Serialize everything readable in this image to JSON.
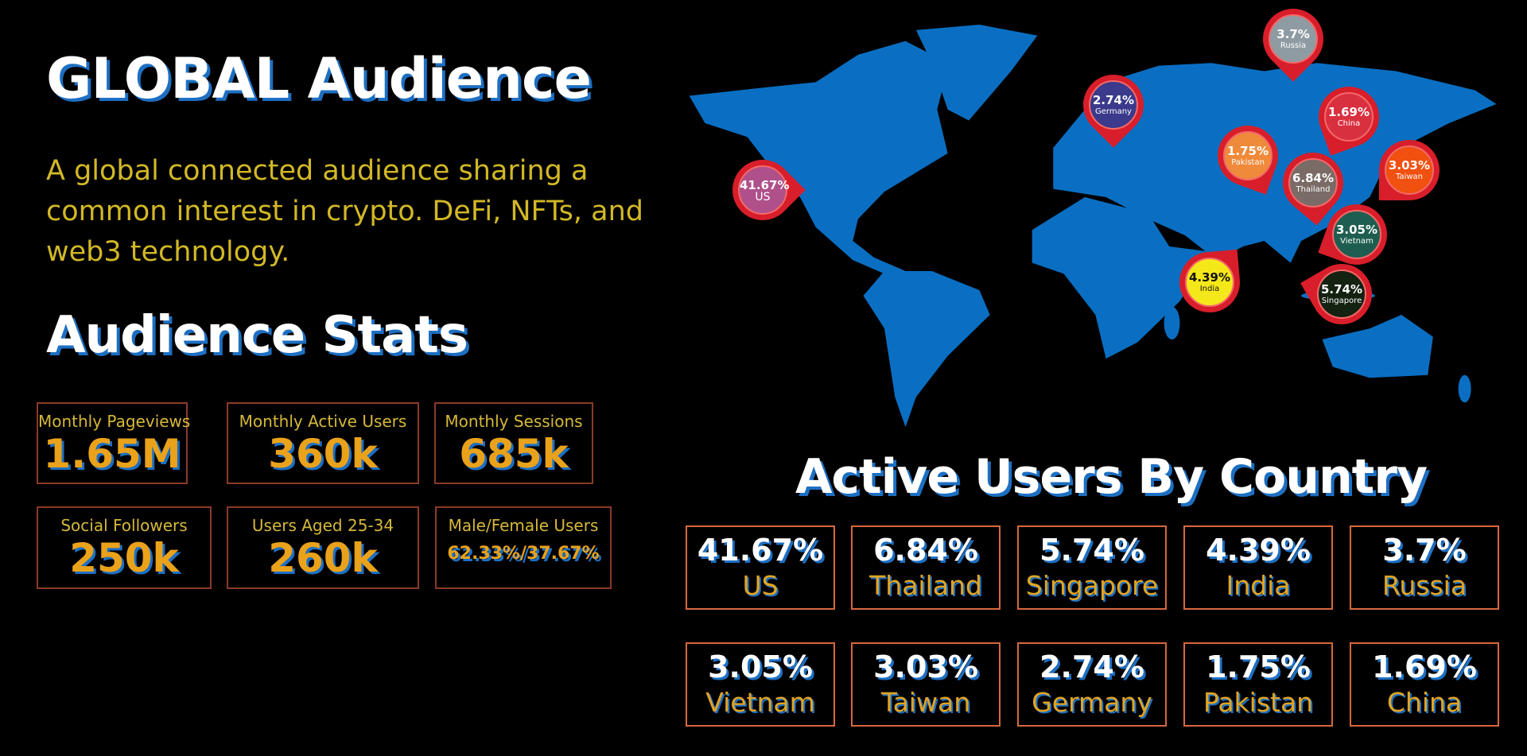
{
  "header": {
    "title": "GLOBAL Audience",
    "intro": "A global connected audience sharing a common interest in crypto. DeFi, NFTs, and web3 technology."
  },
  "stats": {
    "title": "Audience Stats",
    "items": [
      {
        "label": "Monthly Pageviews",
        "value": "1.65M"
      },
      {
        "label": "Monthly Active Users",
        "value": "360k"
      },
      {
        "label": "Monthly Sessions",
        "value": "685k"
      },
      {
        "label": "Social Followers",
        "value": "250k"
      },
      {
        "label": "Users Aged 25-34",
        "value": "260k"
      },
      {
        "label": "Male/Female Users",
        "value": "62.33%/37.67%"
      }
    ]
  },
  "countries": {
    "title": "Active Users By Country",
    "items": [
      {
        "pct": "41.67%",
        "name": "US"
      },
      {
        "pct": "6.84%",
        "name": "Thailand"
      },
      {
        "pct": "5.74%",
        "name": "Singapore"
      },
      {
        "pct": "4.39%",
        "name": "India"
      },
      {
        "pct": "3.7%",
        "name": "Russia"
      },
      {
        "pct": "3.05%",
        "name": "Vietnam"
      },
      {
        "pct": "3.03%",
        "name": "Taiwan"
      },
      {
        "pct": "2.74%",
        "name": "Germany"
      },
      {
        "pct": "1.75%",
        "name": "Pakistan"
      },
      {
        "pct": "1.69%",
        "name": "China"
      }
    ]
  },
  "map": {
    "land_color": "#0a6fc2",
    "pins": [
      {
        "pct": "41.67%",
        "name": "US",
        "color": "#b0508a"
      },
      {
        "pct": "2.74%",
        "name": "Germany",
        "color": "#3b3a8c"
      },
      {
        "pct": "3.7%",
        "name": "Russia",
        "color": "#8e9ba3"
      },
      {
        "pct": "1.69%",
        "name": "China",
        "color": "#d93040"
      },
      {
        "pct": "1.75%",
        "name": "Pakistan",
        "color": "#ef8a3a"
      },
      {
        "pct": "6.84%",
        "name": "Thailand",
        "color": "#7a6b66"
      },
      {
        "pct": "3.03%",
        "name": "Taiwan",
        "color": "#f05010"
      },
      {
        "pct": "3.05%",
        "name": "Vietnam",
        "color": "#1e5e50"
      },
      {
        "pct": "4.39%",
        "name": "India",
        "color": "#f5e81a"
      },
      {
        "pct": "5.74%",
        "name": "Singapore",
        "color": "#142212"
      }
    ]
  }
}
